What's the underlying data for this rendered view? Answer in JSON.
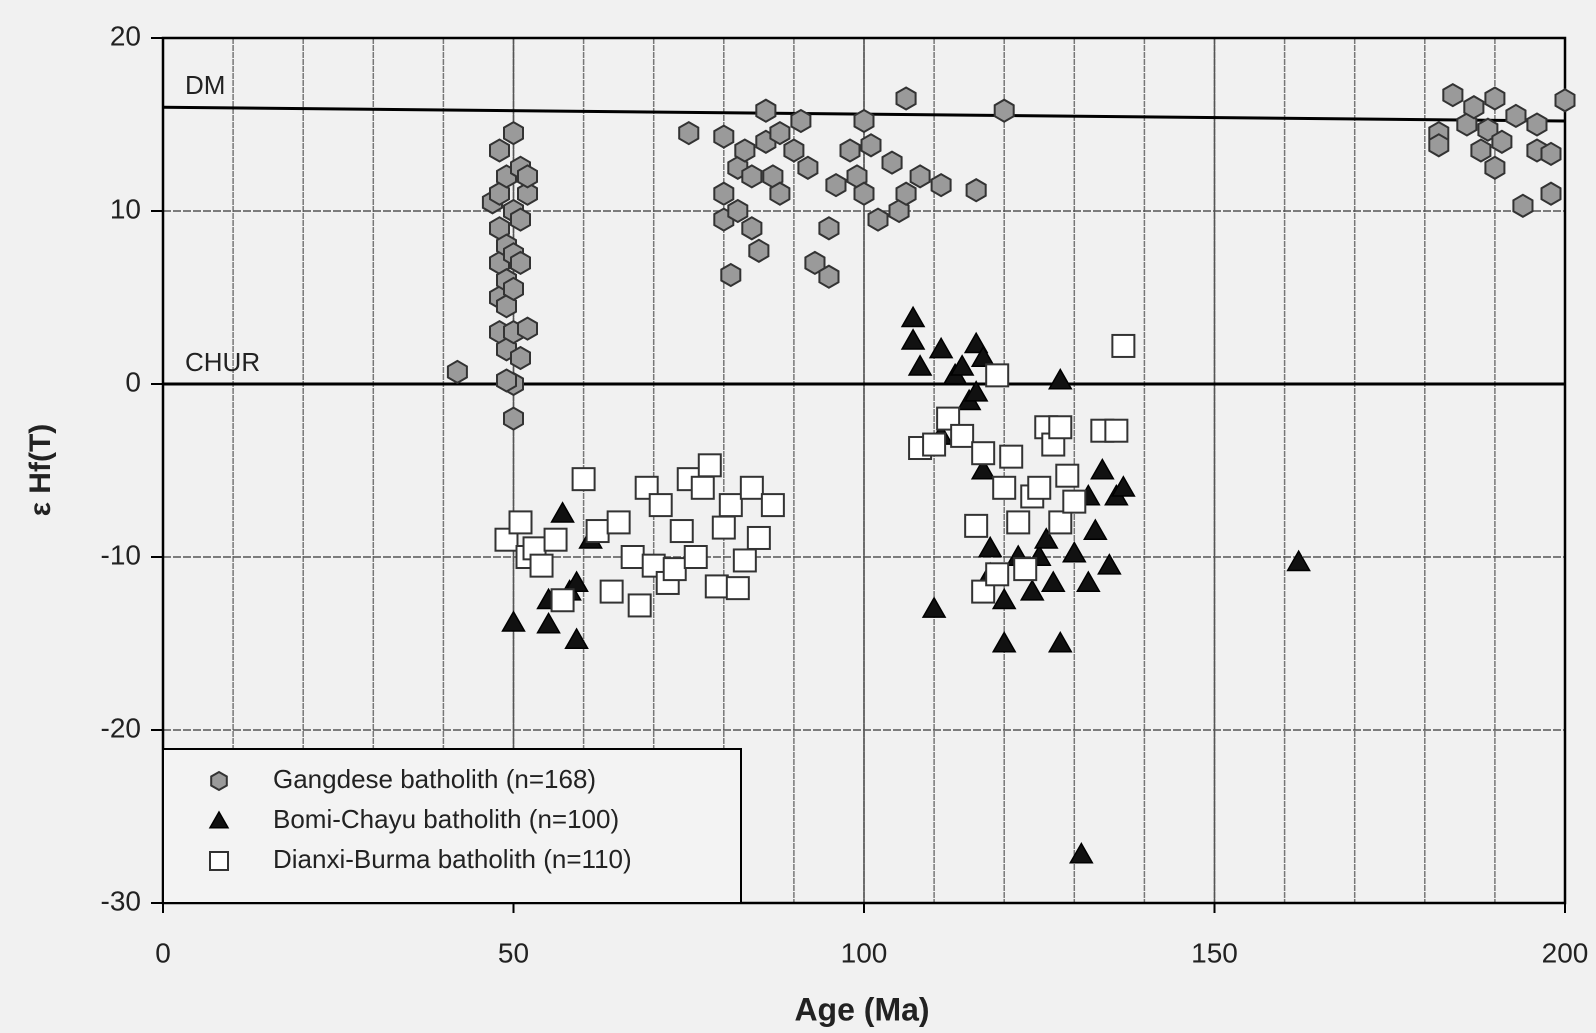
{
  "chart_data": {
    "type": "scatter",
    "x_label": "Age (Ma)",
    "y_label": "ε Hf(T)",
    "xlim": [
      0,
      200
    ],
    "xticks": [
      0,
      50,
      100,
      150,
      200
    ],
    "ylim": [
      -30,
      20
    ],
    "yticks": [
      -30,
      -20,
      -10,
      0,
      10,
      20
    ],
    "grid": true,
    "minor_grid_step": 10,
    "legend": "lower left",
    "lines": [
      {
        "label": "DM",
        "x": [
          0,
          200
        ],
        "y": [
          16,
          15.2
        ]
      },
      {
        "label": "CHUR",
        "x": [
          0,
          200
        ],
        "y": [
          0,
          0
        ]
      }
    ],
    "series": [
      {
        "name": "Gangdese batholith (n=168)",
        "marker": "hexagon",
        "color": "#9a9a9a",
        "x": [
          42,
          47,
          48,
          48,
          48,
          48,
          48,
          48,
          49,
          49,
          49,
          49,
          49,
          50,
          50,
          50,
          50,
          50,
          50,
          50,
          51,
          51,
          51,
          51,
          52,
          52,
          49,
          52,
          75,
          80,
          80,
          80,
          81,
          82,
          82,
          83,
          84,
          84,
          85,
          86,
          86,
          87,
          88,
          88,
          90,
          91,
          92,
          93,
          95,
          95,
          96,
          98,
          99,
          100,
          100,
          101,
          102,
          104,
          105,
          106,
          106,
          108,
          111,
          116,
          120,
          182,
          182,
          184,
          186,
          187,
          188,
          189,
          190,
          190,
          191,
          193,
          194,
          196,
          196,
          198,
          198,
          200
        ],
        "values": [
          0.7,
          10.5,
          13.5,
          11,
          9,
          7,
          5,
          3,
          12,
          8,
          6,
          4.5,
          2,
          14.5,
          10,
          7.5,
          5.5,
          3,
          0,
          -2,
          12.5,
          9.5,
          7,
          1.5,
          11,
          3.2,
          0.2,
          12,
          14.5,
          14.3,
          11,
          9.5,
          6.3,
          12.5,
          10,
          13.5,
          12,
          9,
          7.7,
          15.8,
          14,
          12,
          14.5,
          11,
          13.5,
          15.2,
          12.5,
          7,
          6.2,
          9,
          11.5,
          13.5,
          12,
          15.2,
          11,
          13.8,
          9.5,
          12.8,
          10,
          16.5,
          11,
          12,
          11.5,
          11.2,
          15.8,
          14.5,
          13.8,
          16.7,
          15,
          16,
          13.5,
          14.7,
          16.5,
          12.5,
          14,
          15.5,
          10.3,
          15,
          13.5,
          13.3,
          11,
          16.4
        ]
      },
      {
        "name": "Bomi-Chayu batholith (n=100)",
        "marker": "triangle",
        "color": "#111111",
        "x": [
          50,
          55,
          55,
          57,
          58,
          59,
          59,
          61,
          107,
          107,
          108,
          110,
          111,
          111,
          113,
          114,
          115,
          116,
          116,
          117,
          117,
          118,
          118,
          120,
          120,
          122,
          124,
          125,
          127,
          128,
          128,
          130,
          131,
          132,
          133,
          134,
          135,
          136,
          137,
          162,
          132,
          126
        ],
        "values": [
          -13.8,
          -13.9,
          -12.5,
          -7.5,
          -12,
          -14.8,
          -11.5,
          -9,
          3.8,
          2.5,
          1,
          -13,
          2,
          -3,
          0.5,
          1,
          -1,
          2.3,
          -0.5,
          1.5,
          -5,
          -9.5,
          -11,
          -15,
          -12.5,
          -10,
          -12,
          -10,
          -11.5,
          0.2,
          -15,
          -9.8,
          -27.2,
          -11.5,
          -8.5,
          -5,
          -10.5,
          -6.5,
          -6,
          -10.3,
          -6.5,
          -9
        ]
      },
      {
        "name": "Dianxi-Burma batholith (n=110)",
        "marker": "square",
        "color": "#ffffff",
        "x": [
          49,
          51,
          52,
          53,
          54,
          56,
          57,
          60,
          62,
          64,
          65,
          67,
          68,
          69,
          70,
          71,
          72,
          73,
          74,
          75,
          76,
          77,
          78,
          79,
          80,
          81,
          82,
          83,
          84,
          85,
          87,
          108,
          110,
          112,
          114,
          116,
          117,
          117,
          119,
          119,
          120,
          121,
          122,
          123,
          124,
          126,
          127,
          128,
          128,
          129,
          130,
          134,
          136,
          137,
          125
        ],
        "values": [
          -9,
          -8,
          -10,
          -9.5,
          -10.5,
          -9,
          -12.5,
          -5.5,
          -8.5,
          -12,
          -8,
          -10,
          -12.8,
          -6,
          -10.5,
          -7,
          -11.5,
          -10.7,
          -8.5,
          -5.5,
          -10,
          -6,
          -4.7,
          -11.7,
          -8.3,
          -7,
          -11.8,
          -10.2,
          -6,
          -8.9,
          -7,
          -3.7,
          -3.5,
          -2,
          -3,
          -8.2,
          -12,
          -4,
          0.5,
          -11,
          -6,
          -4.2,
          -8,
          -10.7,
          -6.5,
          -2.5,
          -3.5,
          -2.5,
          -8,
          -5.3,
          -6.8,
          -2.7,
          -2.7,
          2.2,
          -6
        ]
      }
    ]
  }
}
